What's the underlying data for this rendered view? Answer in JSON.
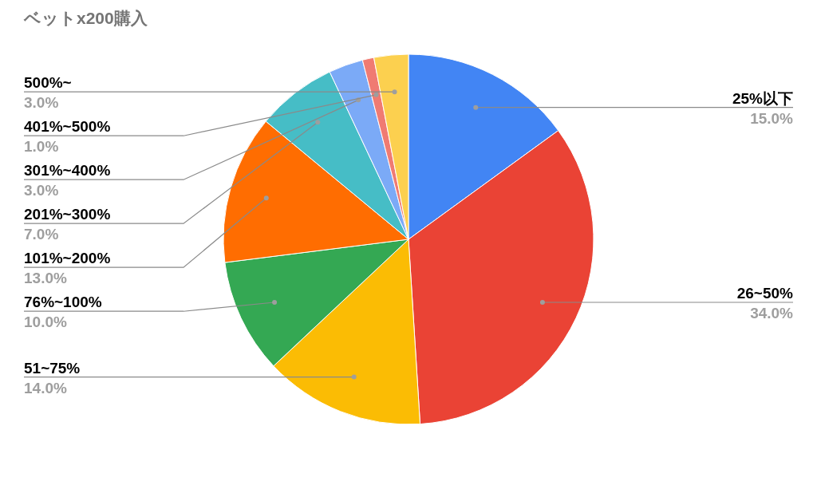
{
  "chart_data": {
    "type": "pie",
    "title": "ベットx200購入",
    "categories": [
      "25%以下",
      "26~50%",
      "51~75%",
      "76%~100%",
      "101%~200%",
      "201%~300%",
      "301%~400%",
      "401%~500%",
      "500%~"
    ],
    "values": [
      15,
      34,
      14,
      10,
      13,
      7,
      3,
      1,
      3
    ],
    "value_labels": [
      "15.0%",
      "34.0%",
      "14.0%",
      "10.0%",
      "13.0%",
      "7.0%",
      "3.0%",
      "1.0%",
      "3.0%"
    ],
    "colors": [
      "#4285f4",
      "#ea4335",
      "#fbbc04",
      "#34a853",
      "#ff6d01",
      "#46bdc6",
      "#7baaf7",
      "#f07b72",
      "#fcd04f"
    ]
  }
}
